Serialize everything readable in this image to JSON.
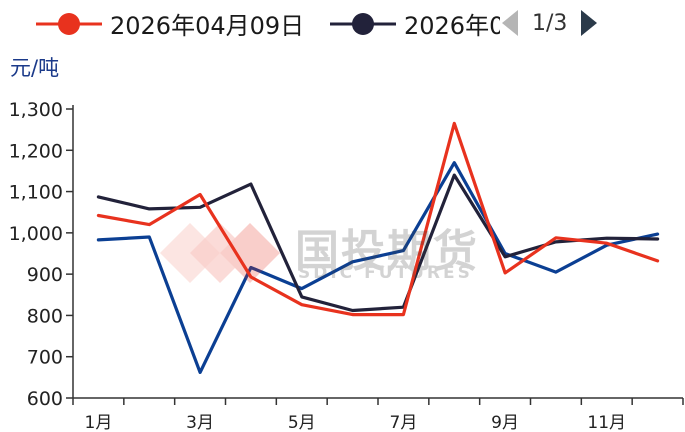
{
  "legend": {
    "items": [
      {
        "label": "2026年04月09日",
        "color": "#e8321e"
      },
      {
        "label": "2026年0",
        "color": "#22223a"
      }
    ],
    "pager": {
      "text": "1/3",
      "prev_icon": "triangle-left-icon",
      "next_icon": "triangle-right-icon"
    }
  },
  "watermark": {
    "cn": "国投期货",
    "en": "SDIC FUTURES"
  },
  "chart_data": {
    "type": "line",
    "ylabel": "元/吨",
    "ylim": [
      600,
      1300
    ],
    "yticks": [
      600,
      700,
      800,
      900,
      1000,
      1100,
      1200,
      1300
    ],
    "ytick_labels": [
      "600",
      "700",
      "800",
      "900",
      "1,000",
      "1,100",
      "1,200",
      "1,300"
    ],
    "x": [
      "1月",
      "2月",
      "3月",
      "4月",
      "5月",
      "6月",
      "7月",
      "8月",
      "9月",
      "10月",
      "11月",
      "12月"
    ],
    "xtick_labels": [
      "1月",
      "",
      "3月",
      "",
      "5月",
      "",
      "7月",
      "",
      "9月",
      "",
      "11月",
      ""
    ],
    "grid": false,
    "series": [
      {
        "name": "2026年04月09日",
        "color": "#e8321e",
        "values": [
          1042,
          1020,
          1093,
          893,
          826,
          802,
          802,
          1265,
          903,
          988,
          975,
          932
        ]
      },
      {
        "name": "2026年0",
        "color": "#22223a",
        "values": [
          1087,
          1058,
          1062,
          1118,
          845,
          812,
          820,
          1140,
          942,
          978,
          987,
          985
        ]
      },
      {
        "name": "",
        "color": "#0b3f93",
        "values": [
          983,
          990,
          662,
          916,
          865,
          930,
          957,
          1170,
          950,
          905,
          970,
          997
        ]
      }
    ]
  }
}
